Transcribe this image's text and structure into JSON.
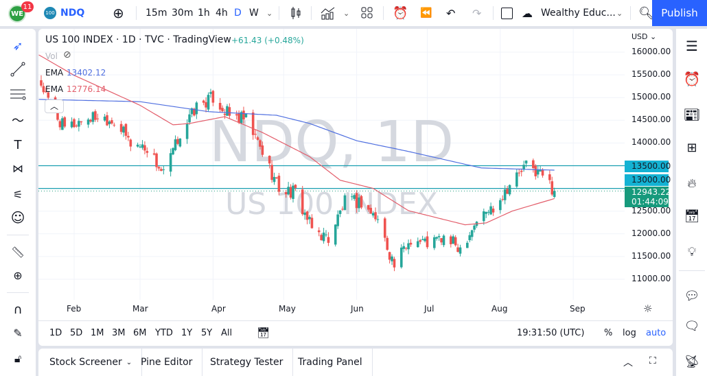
{
  "topbar": {
    "notification_count": "11",
    "symbol_badge": "100",
    "symbol": "NDQ",
    "intervals": [
      "15m",
      "30m",
      "1h",
      "4h",
      "D",
      "W"
    ],
    "active_interval": "D",
    "layout_name": "Wealthy Educ...",
    "publish_label": "Publish"
  },
  "legend": {
    "title": "US 100 INDEX · 1D · TVC · TradingView",
    "change": "+61.43 (+0.48%)",
    "vol_label": "Vol",
    "ema1_label": "EMA",
    "ema1_value": "13402.12",
    "ema2_label": "EMA",
    "ema2_value": "12776.14"
  },
  "watermark": {
    "line1": "NDQ, 1D",
    "line2": "US 100 INDEX"
  },
  "price_axis": {
    "currency": "USD",
    "ticks": [
      "16000.00",
      "15500.00",
      "15000.00",
      "14500.00",
      "14000.00",
      "12500.00",
      "12000.00",
      "11500.00",
      "11000.00"
    ],
    "tick_values": [
      16000,
      15500,
      15000,
      14500,
      14000,
      12500,
      12000,
      11500,
      11000
    ],
    "line_label_1": "13500.00",
    "line_label_2": "13000.00",
    "last_price": "12943.22",
    "countdown": "01:44:09"
  },
  "time_axis": {
    "labels": [
      "Feb",
      "Mar",
      "Apr",
      "May",
      "Jun",
      "Jul",
      "Aug",
      "Sep"
    ]
  },
  "range_bar": {
    "ranges": [
      "1D",
      "5D",
      "1M",
      "3M",
      "6M",
      "YTD",
      "1Y",
      "5Y",
      "All"
    ],
    "clock": "19:31:50 (UTC)",
    "percent": "%",
    "log": "log",
    "auto": "auto"
  },
  "bottom_tabs": [
    "Stock Screener",
    "Pine Editor",
    "Strategy Tester",
    "Trading Panel"
  ],
  "colors": {
    "up": "#26a69a",
    "down": "#ef5350",
    "ema200": "#4f6fe0",
    "ema50": "#e35d6a",
    "hline": "#1a9fb0",
    "accent": "#2962ff",
    "last_price_bg": "#179a7c",
    "line_label_bg": "#14b2d3"
  },
  "chart_data": {
    "type": "candlestick",
    "symbol": "NDQ",
    "interval": "1D",
    "ylim": [
      10800,
      16300
    ],
    "approx_closes": [
      [
        "2022-01-18",
        15300
      ],
      [
        "2022-01-21",
        14900
      ],
      [
        "2022-01-28",
        14300
      ],
      [
        "2022-02-04",
        14500
      ],
      [
        "2022-02-11",
        14600
      ],
      [
        "2022-02-18",
        14500
      ],
      [
        "2022-02-25",
        14000
      ],
      [
        "2022-03-04",
        13900
      ],
      [
        "2022-03-11",
        13300
      ],
      [
        "2022-03-18",
        14200
      ],
      [
        "2022-03-25",
        14800
      ],
      [
        "2022-04-01",
        15000
      ],
      [
        "2022-04-08",
        14600
      ],
      [
        "2022-04-15",
        14500
      ],
      [
        "2022-04-22",
        13800
      ],
      [
        "2022-04-29",
        13000
      ],
      [
        "2022-05-06",
        12900
      ],
      [
        "2022-05-13",
        12100
      ],
      [
        "2022-05-20",
        11900
      ],
      [
        "2022-05-27",
        12700
      ],
      [
        "2022-06-03",
        12700
      ],
      [
        "2022-06-10",
        12300
      ],
      [
        "2022-06-17",
        11300
      ],
      [
        "2022-06-24",
        11900
      ],
      [
        "2022-07-01",
        11800
      ],
      [
        "2022-07-08",
        11900
      ],
      [
        "2022-07-15",
        11700
      ],
      [
        "2022-07-22",
        12300
      ],
      [
        "2022-07-29",
        12600
      ],
      [
        "2022-08-05",
        13100
      ],
      [
        "2022-08-12",
        13500
      ],
      [
        "2022-08-19",
        13300
      ],
      [
        "2022-08-24",
        12943.22
      ]
    ],
    "ema_long": [
      [
        "2022-01-17",
        14960
      ],
      [
        "2022-03-01",
        14910
      ],
      [
        "2022-03-30",
        14690
      ],
      [
        "2022-04-28",
        14610
      ],
      [
        "2022-05-12",
        14430
      ],
      [
        "2022-06-01",
        14050
      ],
      [
        "2022-06-22",
        13825
      ],
      [
        "2022-07-24",
        13450
      ],
      [
        "2022-08-24",
        13402.12
      ]
    ],
    "ema_short": [
      [
        "2022-01-17",
        15940
      ],
      [
        "2022-02-01",
        15490
      ],
      [
        "2022-03-01",
        14830
      ],
      [
        "2022-03-15",
        14400
      ],
      [
        "2022-03-22",
        14430
      ],
      [
        "2022-04-06",
        14580
      ],
      [
        "2022-04-22",
        14230
      ],
      [
        "2022-05-12",
        13700
      ],
      [
        "2022-05-25",
        13180
      ],
      [
        "2022-06-08",
        13000
      ],
      [
        "2022-06-23",
        12510
      ],
      [
        "2022-07-17",
        12200
      ],
      [
        "2022-07-26",
        12240
      ],
      [
        "2022-08-06",
        12500
      ],
      [
        "2022-08-24",
        12776.14
      ]
    ],
    "horizontal_lines": [
      13500,
      13000
    ],
    "last_price": 12943.22
  }
}
